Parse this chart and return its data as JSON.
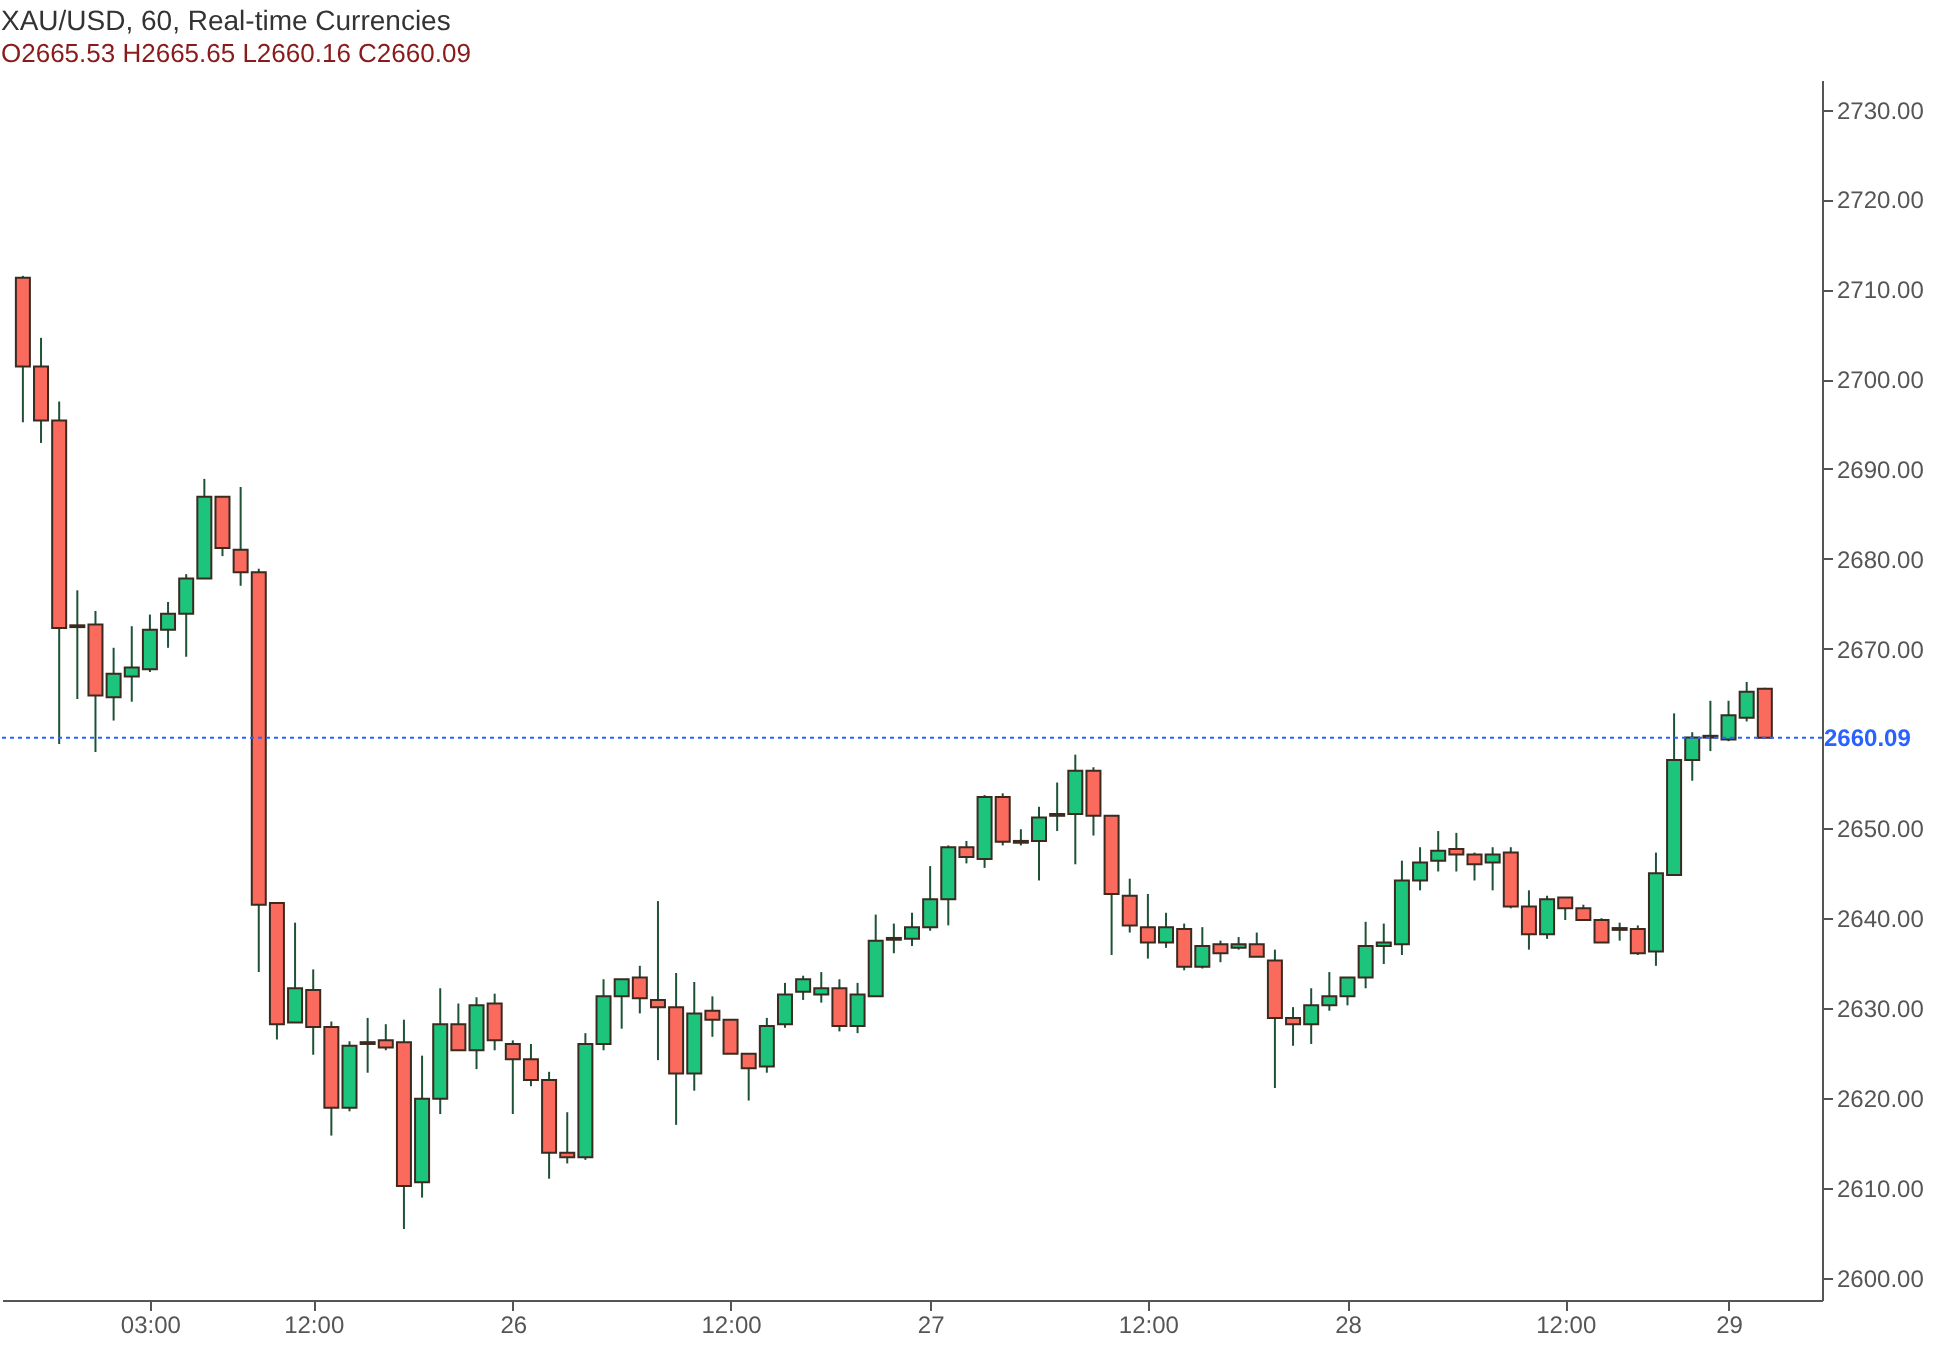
{
  "chart_data": {
    "type": "candlestick",
    "title": "XAU/USD, 60, Real-time Currencies",
    "subtitle": "O2665.53 H2665.65 L2660.16 C2660.09",
    "categories": [
      null,
      null,
      null,
      null,
      null,
      null,
      null,
      "03:00",
      null,
      null,
      null,
      null,
      null,
      null,
      null,
      null,
      "12:00",
      null,
      null,
      null,
      null,
      null,
      null,
      null,
      null,
      null,
      null,
      "26",
      null,
      null,
      null,
      null,
      null,
      null,
      null,
      null,
      null,
      null,
      null,
      "12:00",
      null,
      null,
      null,
      null,
      null,
      null,
      null,
      null,
      null,
      null,
      "27",
      null,
      null,
      null,
      null,
      null,
      null,
      null,
      null,
      null,
      null,
      null,
      "12:00",
      null,
      null,
      null,
      null,
      null,
      null,
      null,
      null,
      null,
      null,
      "28",
      null,
      null,
      null,
      null,
      null,
      null,
      null,
      null,
      null,
      null,
      null,
      "12:00",
      null,
      null,
      null,
      null,
      null,
      null,
      null,
      null,
      "29",
      null,
      null
    ],
    "ohlc": [
      [
        2711.3,
        2711.5,
        2695.2,
        2701.4
      ],
      [
        2701.4,
        2704.6,
        2692.9,
        2695.4
      ],
      [
        2695.4,
        2697.5,
        2659.4,
        2672.3
      ],
      [
        2672.4,
        2676.5,
        2664.4,
        2672.6
      ],
      [
        2672.7,
        2674.2,
        2658.5,
        2664.8
      ],
      [
        2664.6,
        2670.1,
        2662.0,
        2667.2
      ],
      [
        2666.9,
        2672.5,
        2664.1,
        2667.9
      ],
      [
        2667.7,
        2673.8,
        2667.4,
        2672.1
      ],
      [
        2672.1,
        2675.2,
        2670.1,
        2673.9
      ],
      [
        2673.9,
        2678.3,
        2669.1,
        2677.8
      ],
      [
        2677.8,
        2688.9,
        2677.8,
        2686.9
      ],
      [
        2686.9,
        2686.9,
        2680.3,
        2681.2
      ],
      [
        2681.0,
        2688.0,
        2677.0,
        2678.5
      ],
      [
        2678.5,
        2678.9,
        2634.0,
        2641.5
      ],
      [
        2641.7,
        2641.7,
        2626.5,
        2628.2
      ],
      [
        2628.4,
        2639.5,
        2628.4,
        2632.2
      ],
      [
        2632.0,
        2634.3,
        2624.8,
        2627.9
      ],
      [
        2627.9,
        2628.5,
        2615.8,
        2618.9
      ],
      [
        2618.9,
        2626.3,
        2618.5,
        2625.8
      ],
      [
        2626.0,
        2628.9,
        2622.8,
        2626.2
      ],
      [
        2626.4,
        2628.2,
        2625.3,
        2625.6
      ],
      [
        2626.2,
        2628.7,
        2605.4,
        2610.2
      ],
      [
        2610.6,
        2624.7,
        2608.9,
        2619.9
      ],
      [
        2619.9,
        2632.2,
        2618.2,
        2628.2
      ],
      [
        2628.2,
        2630.5,
        2625.3,
        2625.3
      ],
      [
        2625.3,
        2631.2,
        2623.2,
        2630.3
      ],
      [
        2630.5,
        2631.6,
        2625.3,
        2626.4
      ],
      [
        2626.0,
        2626.4,
        2618.2,
        2624.3
      ],
      [
        2624.3,
        2626.0,
        2621.3,
        2622.0
      ],
      [
        2622.0,
        2622.9,
        2611.0,
        2613.9
      ],
      [
        2613.9,
        2618.4,
        2612.7,
        2613.4
      ],
      [
        2613.4,
        2627.2,
        2613.1,
        2626.0
      ],
      [
        2626.0,
        2633.2,
        2625.3,
        2631.3
      ],
      [
        2631.3,
        2633.2,
        2627.7,
        2633.2
      ],
      [
        2633.4,
        2634.7,
        2629.4,
        2631.1
      ],
      [
        2630.9,
        2641.9,
        2624.2,
        2630.1
      ],
      [
        2630.1,
        2633.9,
        2617.0,
        2622.7
      ],
      [
        2622.7,
        2632.9,
        2620.8,
        2629.4
      ],
      [
        2629.7,
        2631.3,
        2626.8,
        2628.7
      ],
      [
        2628.7,
        2628.7,
        2624.9,
        2624.9
      ],
      [
        2624.9,
        2624.9,
        2619.7,
        2623.3
      ],
      [
        2623.5,
        2628.9,
        2622.8,
        2628.0
      ],
      [
        2628.2,
        2632.8,
        2627.8,
        2631.5
      ],
      [
        2631.8,
        2633.6,
        2630.9,
        2633.2
      ],
      [
        2631.5,
        2634.0,
        2630.6,
        2632.2
      ],
      [
        2632.2,
        2633.2,
        2627.4,
        2628.0
      ],
      [
        2628.0,
        2632.8,
        2627.2,
        2631.5
      ],
      [
        2631.3,
        2640.4,
        2631.3,
        2637.5
      ],
      [
        2637.6,
        2639.4,
        2636.1,
        2637.8
      ],
      [
        2637.7,
        2640.6,
        2636.9,
        2639.0
      ],
      [
        2639.0,
        2645.8,
        2638.6,
        2642.1
      ],
      [
        2642.1,
        2648.1,
        2639.2,
        2647.9
      ],
      [
        2647.9,
        2648.6,
        2646.1,
        2646.8
      ],
      [
        2646.6,
        2653.7,
        2645.6,
        2653.5
      ],
      [
        2653.5,
        2653.9,
        2648.1,
        2648.5
      ],
      [
        2648.4,
        2649.9,
        2648.1,
        2648.6
      ],
      [
        2648.6,
        2652.4,
        2644.2,
        2651.2
      ],
      [
        2651.6,
        2655.1,
        2649.7,
        2651.4
      ],
      [
        2651.6,
        2658.2,
        2646.0,
        2656.4
      ],
      [
        2656.4,
        2656.8,
        2649.2,
        2651.4
      ],
      [
        2651.4,
        2651.4,
        2635.9,
        2642.7
      ],
      [
        2642.5,
        2644.4,
        2638.4,
        2639.2
      ],
      [
        2639.0,
        2642.7,
        2635.5,
        2637.3
      ],
      [
        2637.3,
        2640.6,
        2636.7,
        2639.0
      ],
      [
        2638.8,
        2639.4,
        2634.2,
        2634.6
      ],
      [
        2634.6,
        2639.0,
        2634.4,
        2636.9
      ],
      [
        2637.1,
        2637.5,
        2635.1,
        2636.1
      ],
      [
        2636.7,
        2637.9,
        2636.5,
        2637.1
      ],
      [
        2637.1,
        2638.4,
        2635.7,
        2635.7
      ],
      [
        2635.3,
        2636.5,
        2621.1,
        2628.9
      ],
      [
        2628.9,
        2630.1,
        2625.8,
        2628.2
      ],
      [
        2628.2,
        2632.2,
        2626.0,
        2630.3
      ],
      [
        2630.3,
        2634.0,
        2629.7,
        2631.3
      ],
      [
        2631.3,
        2633.4,
        2630.3,
        2633.4
      ],
      [
        2633.4,
        2639.6,
        2632.2,
        2636.9
      ],
      [
        2636.9,
        2639.4,
        2634.9,
        2637.3
      ],
      [
        2637.1,
        2646.4,
        2635.9,
        2644.2
      ],
      [
        2644.2,
        2647.9,
        2643.1,
        2646.2
      ],
      [
        2646.4,
        2649.7,
        2645.2,
        2647.5
      ],
      [
        2647.7,
        2649.5,
        2645.2,
        2647.1
      ],
      [
        2647.1,
        2647.3,
        2644.2,
        2646.0
      ],
      [
        2646.2,
        2647.9,
        2643.1,
        2647.1
      ],
      [
        2647.3,
        2647.9,
        2641.1,
        2641.3
      ],
      [
        2641.3,
        2643.1,
        2636.5,
        2638.2
      ],
      [
        2638.2,
        2642.5,
        2637.7,
        2642.1
      ],
      [
        2642.3,
        2642.3,
        2639.8,
        2641.1
      ],
      [
        2641.1,
        2641.5,
        2639.8,
        2639.8
      ],
      [
        2639.8,
        2640.0,
        2637.3,
        2637.3
      ],
      [
        2638.7,
        2639.5,
        2637.5,
        2638.9
      ],
      [
        2638.8,
        2639.2,
        2635.9,
        2636.1
      ],
      [
        2636.3,
        2647.3,
        2634.7,
        2645.0
      ],
      [
        2644.8,
        2662.8,
        2644.8,
        2657.6
      ],
      [
        2657.6,
        2660.7,
        2655.3,
        2660.1
      ],
      [
        2660.3,
        2664.2,
        2658.6,
        2660.1
      ],
      [
        2659.9,
        2664.2,
        2659.7,
        2662.6
      ],
      [
        2662.3,
        2666.3,
        2661.9,
        2665.2
      ],
      [
        2665.53,
        2665.65,
        2660.09,
        2660.09
      ]
    ],
    "colors": [
      "#fa6a5d",
      "#fa6a5d",
      "#fa6a5d",
      "#1dc47c",
      "#fa6a5d",
      "#1dc47c",
      "#1dc47c",
      "#1dc47c",
      "#1dc47c",
      "#1dc47c",
      "#1dc47c",
      "#fa6a5d",
      "#fa6a5d",
      "#fa6a5d",
      "#fa6a5d",
      "#1dc47c",
      "#fa6a5d",
      "#fa6a5d",
      "#1dc47c",
      "#1dc47c",
      "#fa6a5d",
      "#fa6a5d",
      "#1dc47c",
      "#1dc47c",
      "#fa6a5d",
      "#1dc47c",
      "#fa6a5d",
      "#fa6a5d",
      "#fa6a5d",
      "#fa6a5d",
      "#fa6a5d",
      "#1dc47c",
      "#1dc47c",
      "#1dc47c",
      "#fa6a5d",
      "#fa6a5d",
      "#fa6a5d",
      "#1dc47c",
      "#fa6a5d",
      "#fa6a5d",
      "#fa6a5d",
      "#1dc47c",
      "#1dc47c",
      "#1dc47c",
      "#1dc47c",
      "#fa6a5d",
      "#1dc47c",
      "#1dc47c",
      "#1dc47c",
      "#1dc47c",
      "#1dc47c",
      "#1dc47c",
      "#fa6a5d",
      "#1dc47c",
      "#fa6a5d",
      "#1dc47c",
      "#1dc47c",
      "#fa6a5d",
      "#1dc47c",
      "#fa6a5d",
      "#fa6a5d",
      "#fa6a5d",
      "#fa6a5d",
      "#1dc47c",
      "#fa6a5d",
      "#1dc47c",
      "#fa6a5d",
      "#1dc47c",
      "#fa6a5d",
      "#fa6a5d",
      "#fa6a5d",
      "#1dc47c",
      "#1dc47c",
      "#1dc47c",
      "#1dc47c",
      "#1dc47c",
      "#1dc47c",
      "#1dc47c",
      "#1dc47c",
      "#fa6a5d",
      "#fa6a5d",
      "#1dc47c",
      "#fa6a5d",
      "#fa6a5d",
      "#1dc47c",
      "#fa6a5d",
      "#fa6a5d",
      "#fa6a5d",
      "#1dc47c",
      "#fa6a5d",
      "#1dc47c",
      "#1dc47c",
      "#1dc47c",
      "#fa6a5d",
      "#1dc47c",
      "#1dc47c",
      "#fa6a5d"
    ],
    "ylim": [
      2597.5,
      2733.3
    ],
    "yticks": [
      {
        "value": 2600,
        "label": "2600.00"
      },
      {
        "value": 2610,
        "label": "2610.00"
      },
      {
        "value": 2620,
        "label": "2620.00"
      },
      {
        "value": 2630,
        "label": "2630.00"
      },
      {
        "value": 2640,
        "label": "2640.00"
      },
      {
        "value": 2650,
        "label": "2650.00"
      },
      {
        "value": 2670,
        "label": "2670.00"
      },
      {
        "value": 2680,
        "label": "2680.00"
      },
      {
        "value": 2690,
        "label": "2690.00"
      },
      {
        "value": 2700,
        "label": "2700.00"
      },
      {
        "value": 2710,
        "label": "2710.00"
      },
      {
        "value": 2720,
        "label": "2720.00"
      },
      {
        "value": 2730,
        "label": "2730.00"
      }
    ],
    "ref_lines": [
      {
        "axis": "y",
        "value": 2660.09,
        "label": "2660.09",
        "color": "#2962ff",
        "line_style": "dotted"
      }
    ]
  }
}
